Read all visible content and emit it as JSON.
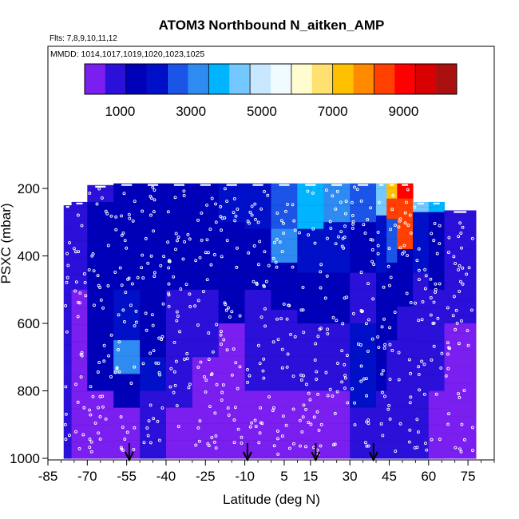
{
  "chart_data": {
    "type": "heatmap",
    "title": "ATOM3 Northbound N_aitken_AMP",
    "subtitle_flights": "Flts: 7,8,9,10,11,12",
    "subtitle_dates": "MMDD: 1014,1017,1019,1020,1023,1025",
    "xlabel": "Latitude (deg N)",
    "ylabel": "PSXC (mbar)",
    "xlim": [
      -85,
      85
    ],
    "ylim": [
      1000,
      100
    ],
    "x_ticks": [
      -85,
      -70,
      -55,
      -40,
      -25,
      -10,
      5,
      15,
      30,
      45,
      60,
      75
    ],
    "x_tick_labels": [
      "-85",
      "-70",
      "-55",
      "-40",
      "-25",
      "-10",
      "5",
      "15",
      "30",
      "45",
      "60",
      "75"
    ],
    "y_ticks": [
      200,
      400,
      600,
      800,
      1000
    ],
    "y_tick_labels": [
      "200",
      "400",
      "600",
      "800",
      "1000"
    ],
    "colorbar": {
      "range": [
        0,
        10500
      ],
      "ticks": [
        1000,
        3000,
        5000,
        7000,
        9000
      ],
      "tick_labels": [
        "1000",
        "3000",
        "5000",
        "7000",
        "9000"
      ],
      "colors": [
        "#7a1ff0",
        "#2a10d8",
        "#0000b8",
        "#0010c8",
        "#1a55e8",
        "#2e8bf2",
        "#00b4ff",
        "#73c8ff",
        "#c8e8ff",
        "#f0fbff",
        "#fffcd0",
        "#ffe070",
        "#ffc000",
        "#ff8a00",
        "#ff4000",
        "#ff0000",
        "#d80000",
        "#aa1010"
      ]
    },
    "arrow_latitudes": [
      -54,
      -9,
      17,
      39
    ],
    "columns": [
      {
        "lat_range": [
          -79,
          -76
        ],
        "cells": [
          [
            250,
            1000,
            600
          ]
        ]
      },
      {
        "lat_range": [
          -76,
          -70
        ],
        "cells": [
          [
            240,
            500,
            900
          ],
          [
            500,
            1000,
            500
          ]
        ]
      },
      {
        "lat_range": [
          -70,
          -60
        ],
        "cells": [
          [
            190,
            240,
            1100
          ],
          [
            240,
            450,
            1300
          ],
          [
            450,
            650,
            1500
          ],
          [
            650,
            800,
            1200
          ],
          [
            800,
            1000,
            500
          ]
        ]
      },
      {
        "lat_range": [
          -60,
          -50
        ],
        "cells": [
          [
            185,
            290,
            1400
          ],
          [
            290,
            500,
            1500
          ],
          [
            500,
            650,
            2200
          ],
          [
            650,
            750,
            3200
          ],
          [
            750,
            850,
            1400
          ],
          [
            850,
            1000,
            500
          ]
        ]
      },
      {
        "lat_range": [
          -50,
          -40
        ],
        "cells": [
          [
            185,
            300,
            1500
          ],
          [
            300,
            500,
            1300
          ],
          [
            500,
            700,
            1600
          ],
          [
            700,
            800,
            1800
          ],
          [
            800,
            1000,
            600
          ]
        ]
      },
      {
        "lat_range": [
          -40,
          -30
        ],
        "cells": [
          [
            185,
            300,
            1600
          ],
          [
            300,
            500,
            1400
          ],
          [
            500,
            700,
            1100
          ],
          [
            700,
            850,
            800
          ],
          [
            850,
            1000,
            500
          ]
        ]
      },
      {
        "lat_range": [
          -30,
          -20
        ],
        "cells": [
          [
            185,
            300,
            1700
          ],
          [
            300,
            500,
            1500
          ],
          [
            500,
            700,
            900
          ],
          [
            700,
            1000,
            450
          ]
        ]
      },
      {
        "lat_range": [
          -20,
          -10
        ],
        "cells": [
          [
            185,
            300,
            1800
          ],
          [
            300,
            500,
            1600
          ],
          [
            500,
            600,
            1200
          ],
          [
            600,
            1000,
            450
          ]
        ]
      },
      {
        "lat_range": [
          -10,
          0
        ],
        "cells": [
          [
            185,
            320,
            2000
          ],
          [
            320,
            500,
            1600
          ],
          [
            500,
            800,
            900
          ],
          [
            800,
            1000,
            450
          ]
        ]
      },
      {
        "lat_range": [
          0,
          10
        ],
        "cells": [
          [
            185,
            320,
            2600
          ],
          [
            320,
            420,
            3400
          ],
          [
            420,
            560,
            1500
          ],
          [
            560,
            800,
            800
          ],
          [
            800,
            1000,
            400
          ]
        ]
      },
      {
        "lat_range": [
          10,
          20
        ],
        "cells": [
          [
            185,
            320,
            3800
          ],
          [
            320,
            450,
            2300
          ],
          [
            450,
            600,
            1400
          ],
          [
            600,
            800,
            900
          ],
          [
            800,
            1000,
            450
          ]
        ]
      },
      {
        "lat_range": [
          20,
          30
        ],
        "cells": [
          [
            185,
            300,
            3400
          ],
          [
            300,
            450,
            2200
          ],
          [
            450,
            600,
            1700
          ],
          [
            600,
            800,
            1000
          ],
          [
            800,
            1000,
            500
          ]
        ]
      },
      {
        "lat_range": [
          30,
          40
        ],
        "cells": [
          [
            185,
            300,
            2700
          ],
          [
            300,
            450,
            1700
          ],
          [
            450,
            600,
            1100
          ],
          [
            600,
            850,
            1800
          ],
          [
            850,
            1000,
            600
          ]
        ]
      },
      {
        "lat_range": [
          40,
          44
        ],
        "cells": [
          [
            185,
            280,
            4200
          ],
          [
            280,
            450,
            1900
          ],
          [
            450,
            650,
            1300
          ],
          [
            650,
            800,
            1700
          ],
          [
            800,
            1000,
            600
          ]
        ]
      },
      {
        "lat_range": [
          44,
          48
        ],
        "cells": [
          [
            185,
            230,
            7500
          ],
          [
            230,
            290,
            8600
          ],
          [
            290,
            420,
            2400
          ],
          [
            420,
            650,
            1500
          ],
          [
            650,
            1000,
            700
          ]
        ]
      },
      {
        "lat_range": [
          48,
          54
        ],
        "cells": [
          [
            185,
            230,
            9200
          ],
          [
            230,
            380,
            8400
          ],
          [
            380,
            550,
            1300
          ],
          [
            550,
            1000,
            700
          ]
        ]
      },
      {
        "lat_range": [
          54,
          60
        ],
        "cells": [
          [
            240,
            270,
            4600
          ],
          [
            270,
            450,
            1800
          ],
          [
            450,
            750,
            1000
          ],
          [
            750,
            1000,
            600
          ]
        ]
      },
      {
        "lat_range": [
          60,
          66
        ],
        "cells": [
          [
            240,
            270,
            3800
          ],
          [
            270,
            500,
            1200
          ],
          [
            500,
            800,
            600
          ],
          [
            800,
            1000,
            450
          ]
        ]
      },
      {
        "lat_range": [
          66,
          78
        ],
        "cells": [
          [
            265,
            600,
            1100
          ],
          [
            600,
            1000,
            450
          ]
        ]
      }
    ]
  }
}
